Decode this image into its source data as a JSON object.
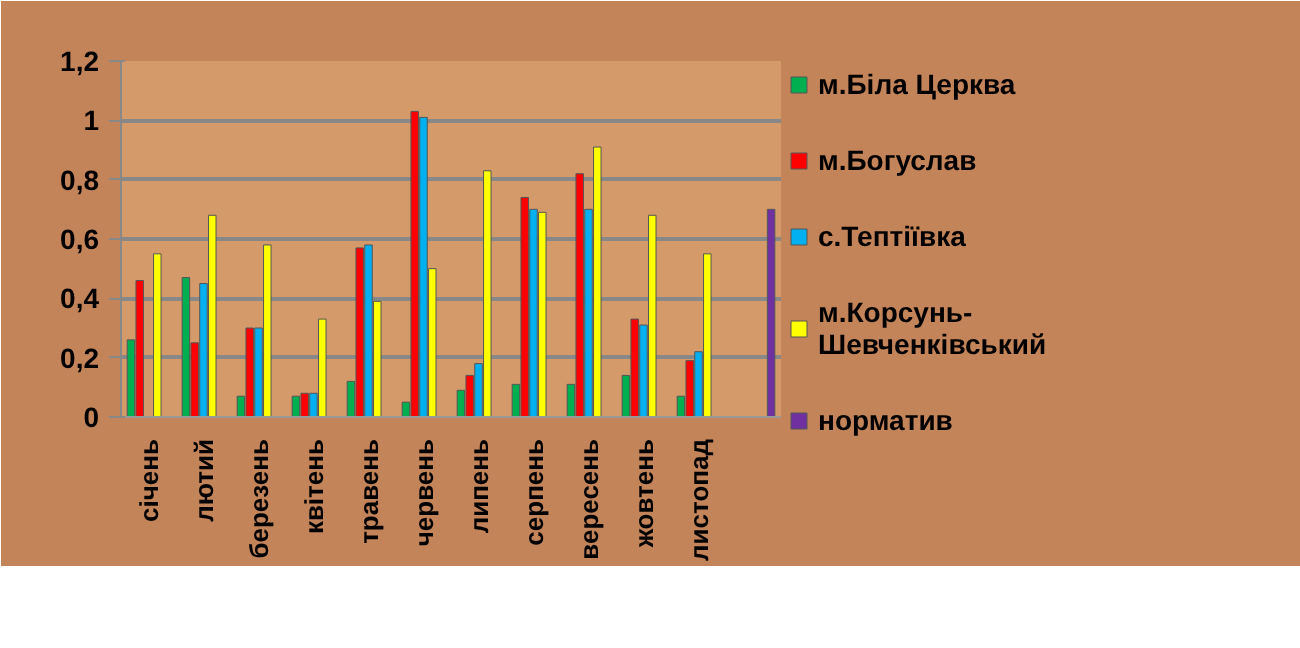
{
  "chart_data": {
    "type": "bar",
    "categories": [
      "січень",
      "лютий",
      "березень",
      "квітень",
      "травень",
      "червень",
      "липень",
      "серпень",
      "вересень",
      "жовтень",
      "листопад",
      null
    ],
    "series": [
      {
        "name": "м.Біла Церква",
        "color": "#00b050",
        "values": [
          0.26,
          0.47,
          0.07,
          0.07,
          0.12,
          0.05,
          0.09,
          0.11,
          0.11,
          0.14,
          0.07,
          null
        ]
      },
      {
        "name": "м.Богуслав",
        "color": "#ff0000",
        "values": [
          0.46,
          0.25,
          0.3,
          0.08,
          0.57,
          1.03,
          0.14,
          0.74,
          0.82,
          0.33,
          0.19,
          null
        ]
      },
      {
        "name": "с.Тептіївка",
        "color": "#00b0f0",
        "values": [
          null,
          0.45,
          0.3,
          0.08,
          0.58,
          1.01,
          0.18,
          0.7,
          0.7,
          0.31,
          0.22,
          null
        ]
      },
      {
        "name": "м.Корсунь-Шевченківський",
        "color": "#ffff00",
        "values": [
          0.55,
          0.68,
          0.58,
          0.33,
          0.39,
          0.5,
          0.83,
          0.69,
          0.91,
          0.68,
          0.55,
          null
        ]
      },
      {
        "name": "норматив",
        "color": "#7030a0",
        "values": [
          null,
          null,
          null,
          null,
          null,
          null,
          null,
          null,
          null,
          null,
          null,
          0.7
        ]
      }
    ],
    "ylim": [
      0,
      1.2
    ],
    "yticks": [
      0,
      {
        "value": 0.2,
        "label": "0,2"
      },
      {
        "value": 0.4,
        "label": "0,4"
      },
      {
        "value": 0.6,
        "label": "0,6"
      },
      {
        "value": 0.8,
        "label": "0,8"
      },
      1,
      {
        "value": 1.2,
        "label": "1,2"
      }
    ],
    "grid": "y",
    "legend": "right"
  }
}
